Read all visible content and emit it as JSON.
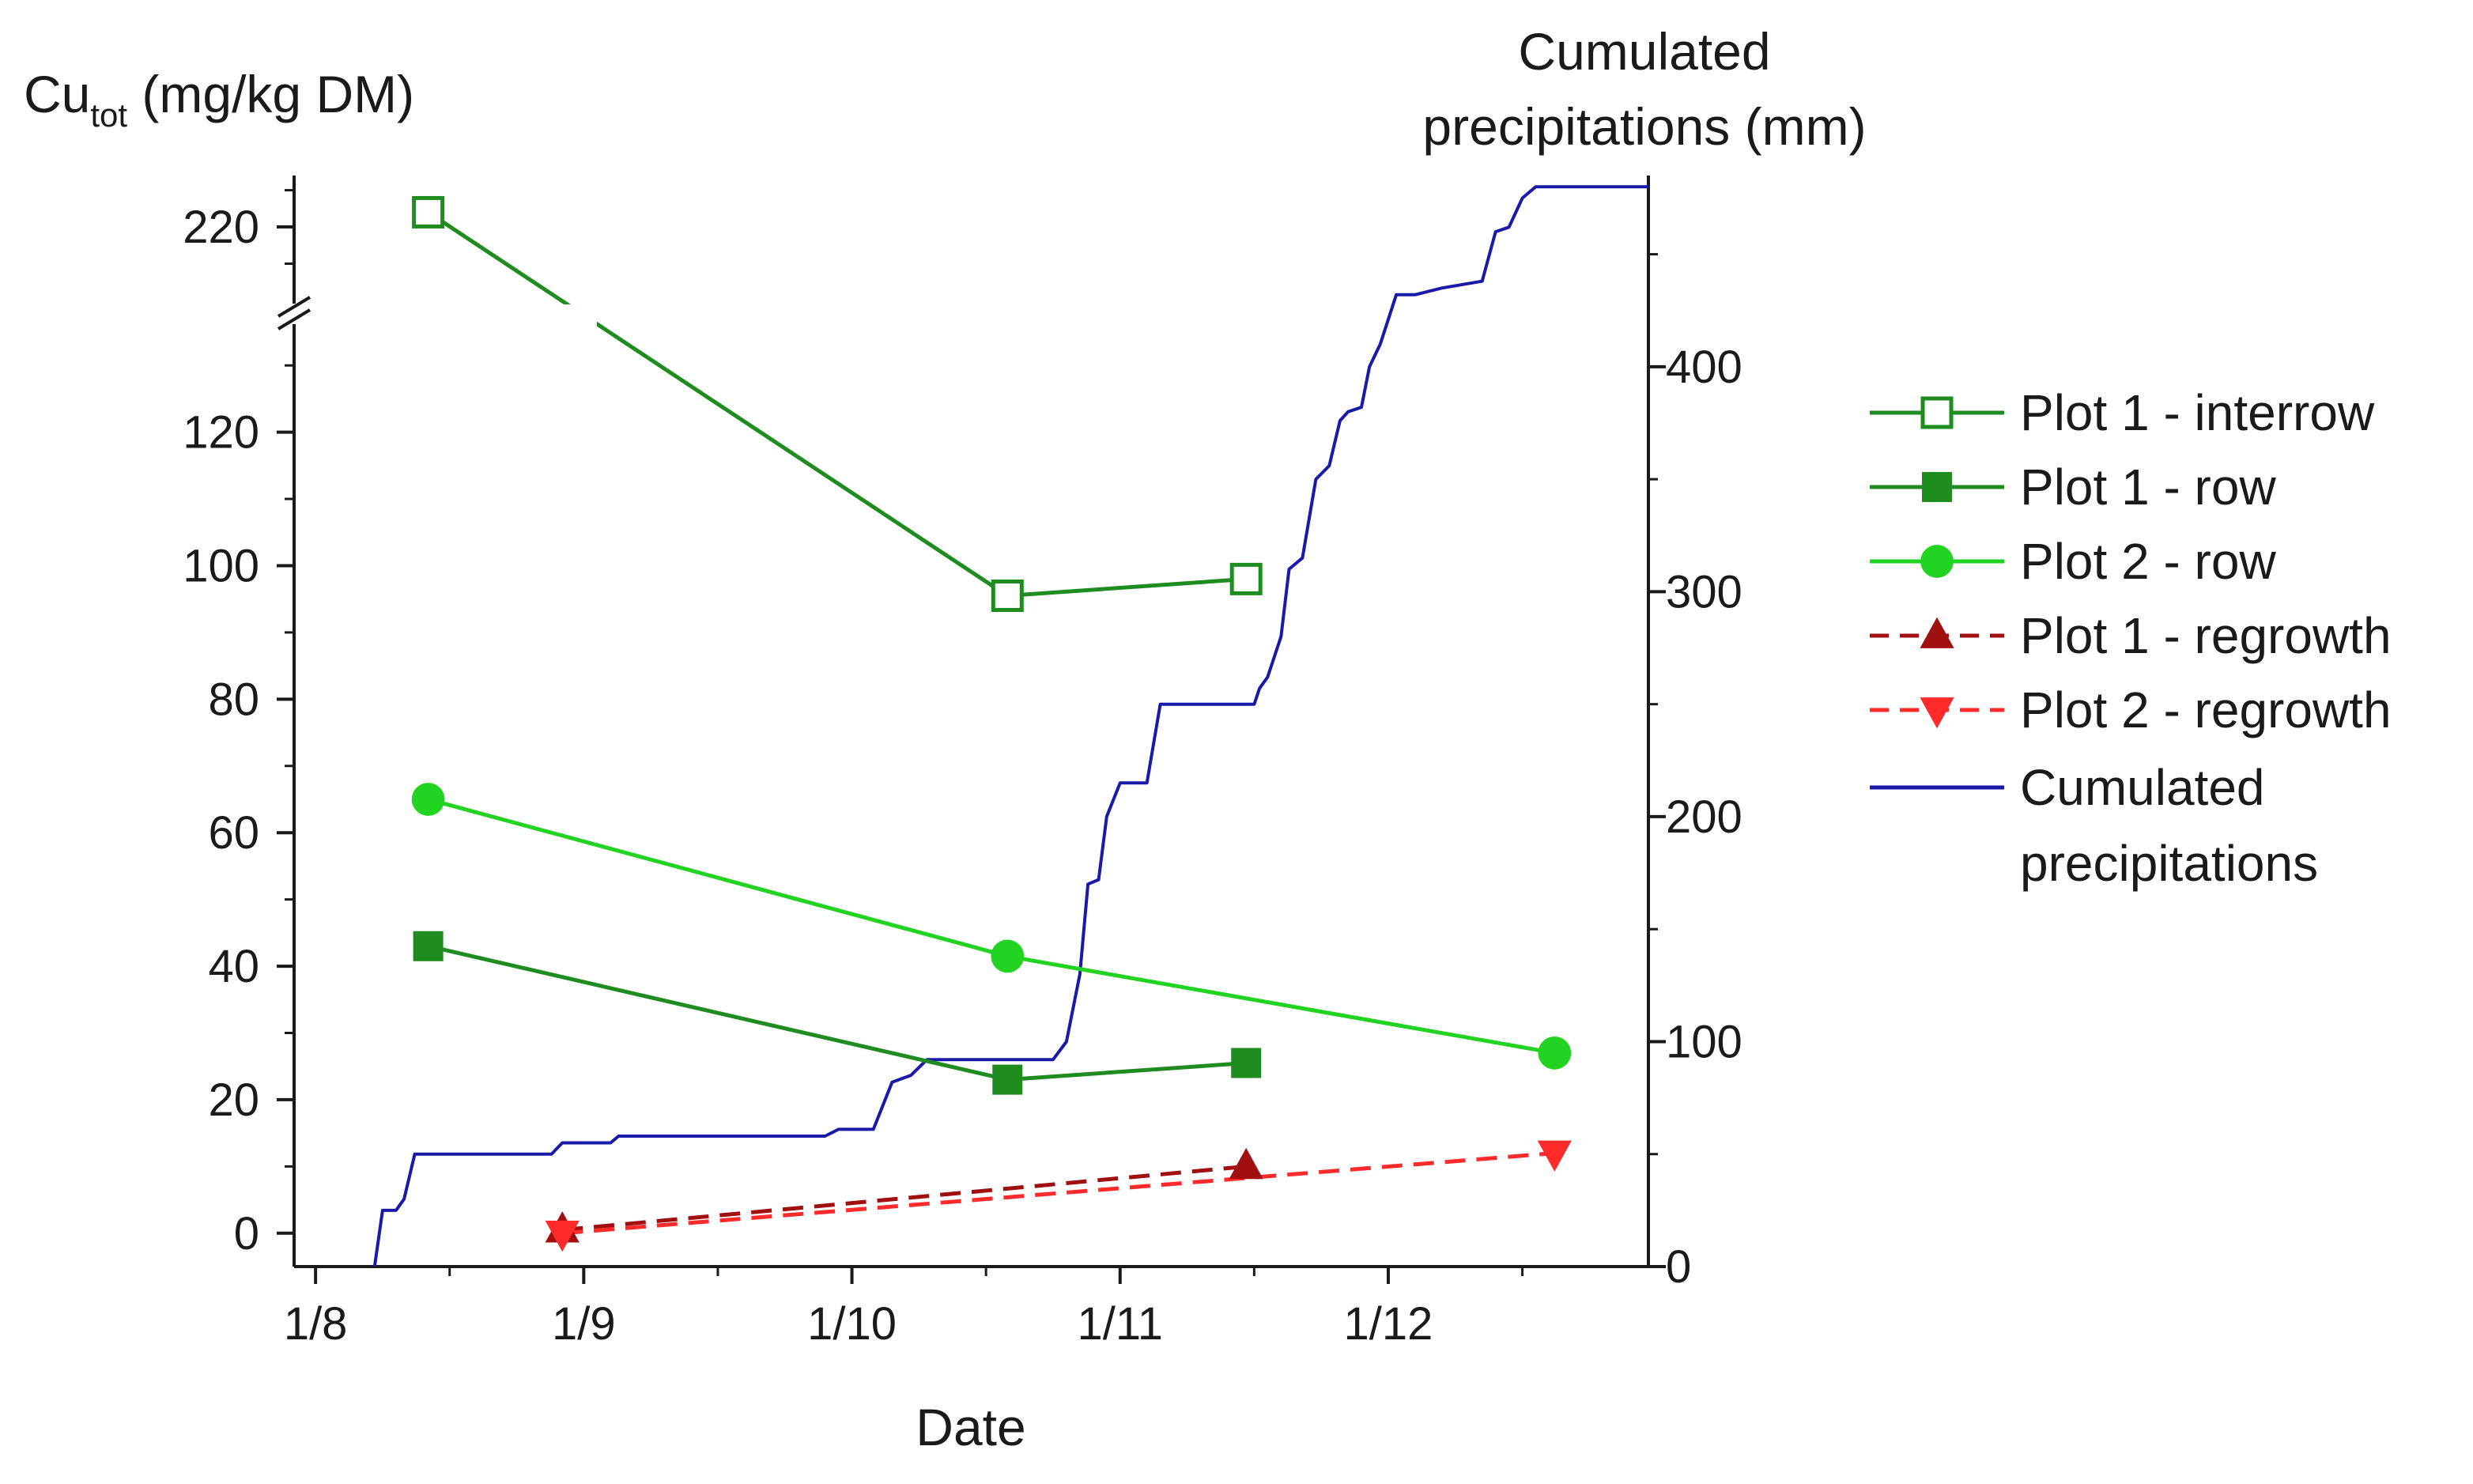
{
  "chart_data": {
    "type": "line",
    "xlabel": "Date",
    "x_ticks": [
      {
        "label": "1/8",
        "month": 8
      },
      {
        "label": "1/9",
        "month": 9
      },
      {
        "label": "1/10",
        "month": 10
      },
      {
        "label": "1/11",
        "month": 11
      },
      {
        "label": "1/12",
        "month": 12
      }
    ],
    "xlim": [
      7.92,
      12.97
    ],
    "left_axis": {
      "label_main": "Cu",
      "label_sub": "tot",
      "label_rest": " (mg/kg DM)",
      "lower_range": [
        -5,
        135
      ],
      "lower_ticks": [
        0,
        20,
        40,
        60,
        80,
        100,
        120
      ],
      "upper_range": [
        210,
        227
      ],
      "upper_ticks": [
        220
      ],
      "axis_break": true
    },
    "right_axis": {
      "label_line1": "Cumulated",
      "label_line2": "precipitations (mm)",
      "range": [
        0,
        485
      ],
      "ticks": [
        0,
        100,
        200,
        300,
        400
      ]
    },
    "series": [
      {
        "name": "Plot 1 - interrow",
        "axis": "left",
        "color": "#1e8c1e",
        "marker": "square-open",
        "dash": false,
        "points": [
          {
            "x": 8.42,
            "y": 222
          },
          {
            "x": 10.58,
            "y": 95.5
          },
          {
            "x": 11.47,
            "y": 98
          }
        ]
      },
      {
        "name": "Plot 1 - row",
        "axis": "left",
        "color": "#1e8c1e",
        "marker": "square",
        "dash": false,
        "points": [
          {
            "x": 8.42,
            "y": 43
          },
          {
            "x": 10.58,
            "y": 23
          },
          {
            "x": 11.47,
            "y": 25.5
          }
        ]
      },
      {
        "name": "Plot 2 - row",
        "axis": "left",
        "color": "#22d322",
        "marker": "circle",
        "dash": false,
        "points": [
          {
            "x": 8.42,
            "y": 65
          },
          {
            "x": 10.58,
            "y": 41.5
          },
          {
            "x": 12.62,
            "y": 27
          }
        ]
      },
      {
        "name": "Plot 1 - regrowth",
        "axis": "left",
        "color": "#a01010",
        "marker": "triangle-up",
        "dash": true,
        "points": [
          {
            "x": 8.92,
            "y": 0.5
          },
          {
            "x": 11.47,
            "y": 10
          }
        ]
      },
      {
        "name": "Plot 2 - regrowth",
        "axis": "left",
        "color": "#ff2a2a",
        "marker": "triangle-down",
        "dash": true,
        "points": [
          {
            "x": 8.92,
            "y": 0
          },
          {
            "x": 12.62,
            "y": 12
          }
        ]
      },
      {
        "name": "Cumulated precipitations",
        "axis": "right",
        "color": "#1a1aa8",
        "marker": "none",
        "dash": false,
        "step": true,
        "points": [
          {
            "x": 8.22,
            "y": 0
          },
          {
            "x": 8.25,
            "y": 25
          },
          {
            "x": 8.3,
            "y": 25
          },
          {
            "x": 8.33,
            "y": 30
          },
          {
            "x": 8.37,
            "y": 50
          },
          {
            "x": 8.88,
            "y": 50
          },
          {
            "x": 8.92,
            "y": 55
          },
          {
            "x": 9.1,
            "y": 55
          },
          {
            "x": 9.13,
            "y": 58
          },
          {
            "x": 9.9,
            "y": 58
          },
          {
            "x": 9.95,
            "y": 61
          },
          {
            "x": 10.08,
            "y": 61
          },
          {
            "x": 10.15,
            "y": 82
          },
          {
            "x": 10.22,
            "y": 85
          },
          {
            "x": 10.28,
            "y": 92
          },
          {
            "x": 10.75,
            "y": 92
          },
          {
            "x": 10.8,
            "y": 100
          },
          {
            "x": 10.85,
            "y": 130
          },
          {
            "x": 10.88,
            "y": 170
          },
          {
            "x": 10.92,
            "y": 172
          },
          {
            "x": 10.95,
            "y": 200
          },
          {
            "x": 11.0,
            "y": 215
          },
          {
            "x": 11.1,
            "y": 215
          },
          {
            "x": 11.15,
            "y": 250
          },
          {
            "x": 11.5,
            "y": 250
          },
          {
            "x": 11.52,
            "y": 257
          },
          {
            "x": 11.55,
            "y": 262
          },
          {
            "x": 11.6,
            "y": 280
          },
          {
            "x": 11.63,
            "y": 310
          },
          {
            "x": 11.68,
            "y": 315
          },
          {
            "x": 11.73,
            "y": 350
          },
          {
            "x": 11.78,
            "y": 356
          },
          {
            "x": 11.82,
            "y": 376
          },
          {
            "x": 11.85,
            "y": 380
          },
          {
            "x": 11.9,
            "y": 382
          },
          {
            "x": 11.93,
            "y": 400
          },
          {
            "x": 11.97,
            "y": 410
          },
          {
            "x": 12.03,
            "y": 432
          },
          {
            "x": 12.1,
            "y": 432
          },
          {
            "x": 12.2,
            "y": 435
          },
          {
            "x": 12.35,
            "y": 438
          },
          {
            "x": 12.4,
            "y": 460
          },
          {
            "x": 12.45,
            "y": 462
          },
          {
            "x": 12.5,
            "y": 475
          },
          {
            "x": 12.55,
            "y": 480
          },
          {
            "x": 12.97,
            "y": 480
          }
        ]
      }
    ],
    "legend": {
      "position": "right",
      "entries": [
        {
          "label": "Plot 1 - interrow",
          "series": 0
        },
        {
          "label": "Plot 1 - row",
          "series": 1
        },
        {
          "label": "Plot 2 - row",
          "series": 2
        },
        {
          "label": "Plot 1 - regrowth",
          "series": 3
        },
        {
          "label": "Plot 2 - regrowth",
          "series": 4
        },
        {
          "label_line1": "Cumulated",
          "label_line2": "precipitations",
          "series": 5
        }
      ]
    }
  }
}
